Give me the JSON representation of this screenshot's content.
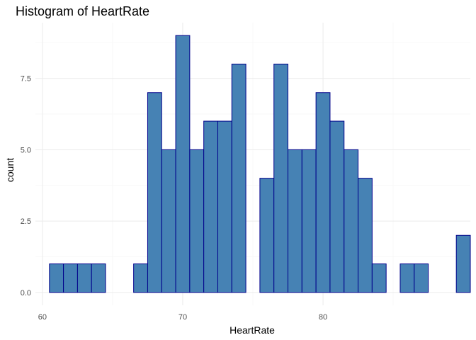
{
  "chart_data": {
    "type": "bar",
    "title": "Histogram of HeartRate",
    "xlabel": "HeartRate",
    "ylabel": "count",
    "bin_width": 1,
    "bins": [
      {
        "x": 61,
        "count": 1
      },
      {
        "x": 62,
        "count": 1
      },
      {
        "x": 63,
        "count": 1
      },
      {
        "x": 64,
        "count": 1
      },
      {
        "x": 65,
        "count": 0
      },
      {
        "x": 66,
        "count": 0
      },
      {
        "x": 67,
        "count": 1
      },
      {
        "x": 68,
        "count": 7
      },
      {
        "x": 69,
        "count": 5
      },
      {
        "x": 70,
        "count": 9
      },
      {
        "x": 71,
        "count": 5
      },
      {
        "x": 72,
        "count": 6
      },
      {
        "x": 73,
        "count": 6
      },
      {
        "x": 74,
        "count": 8
      },
      {
        "x": 75,
        "count": 0
      },
      {
        "x": 76,
        "count": 4
      },
      {
        "x": 77,
        "count": 8
      },
      {
        "x": 78,
        "count": 5
      },
      {
        "x": 79,
        "count": 5
      },
      {
        "x": 80,
        "count": 7
      },
      {
        "x": 81,
        "count": 6
      },
      {
        "x": 82,
        "count": 5
      },
      {
        "x": 83,
        "count": 4
      },
      {
        "x": 84,
        "count": 1
      },
      {
        "x": 85,
        "count": 0
      },
      {
        "x": 86,
        "count": 1
      },
      {
        "x": 87,
        "count": 1
      },
      {
        "x": 88,
        "count": 0
      },
      {
        "x": 89,
        "count": 0
      },
      {
        "x": 90,
        "count": 2
      }
    ],
    "x_ticks": [
      "60",
      "70",
      "80"
    ],
    "x_tick_values": [
      60,
      70,
      80
    ],
    "y_ticks": [
      "0.0",
      "2.5",
      "5.0",
      "7.5"
    ],
    "y_tick_values": [
      0,
      2.5,
      5,
      7.5
    ],
    "xlim": [
      59.5,
      90.5
    ],
    "ylim": [
      -0.45,
      9.45
    ],
    "grid": true,
    "legend": "none",
    "colors": {
      "fill": "#4682b4",
      "outline": "#00008b",
      "grid_major": "#ebebeb",
      "grid_minor": "#f5f5f5"
    }
  }
}
